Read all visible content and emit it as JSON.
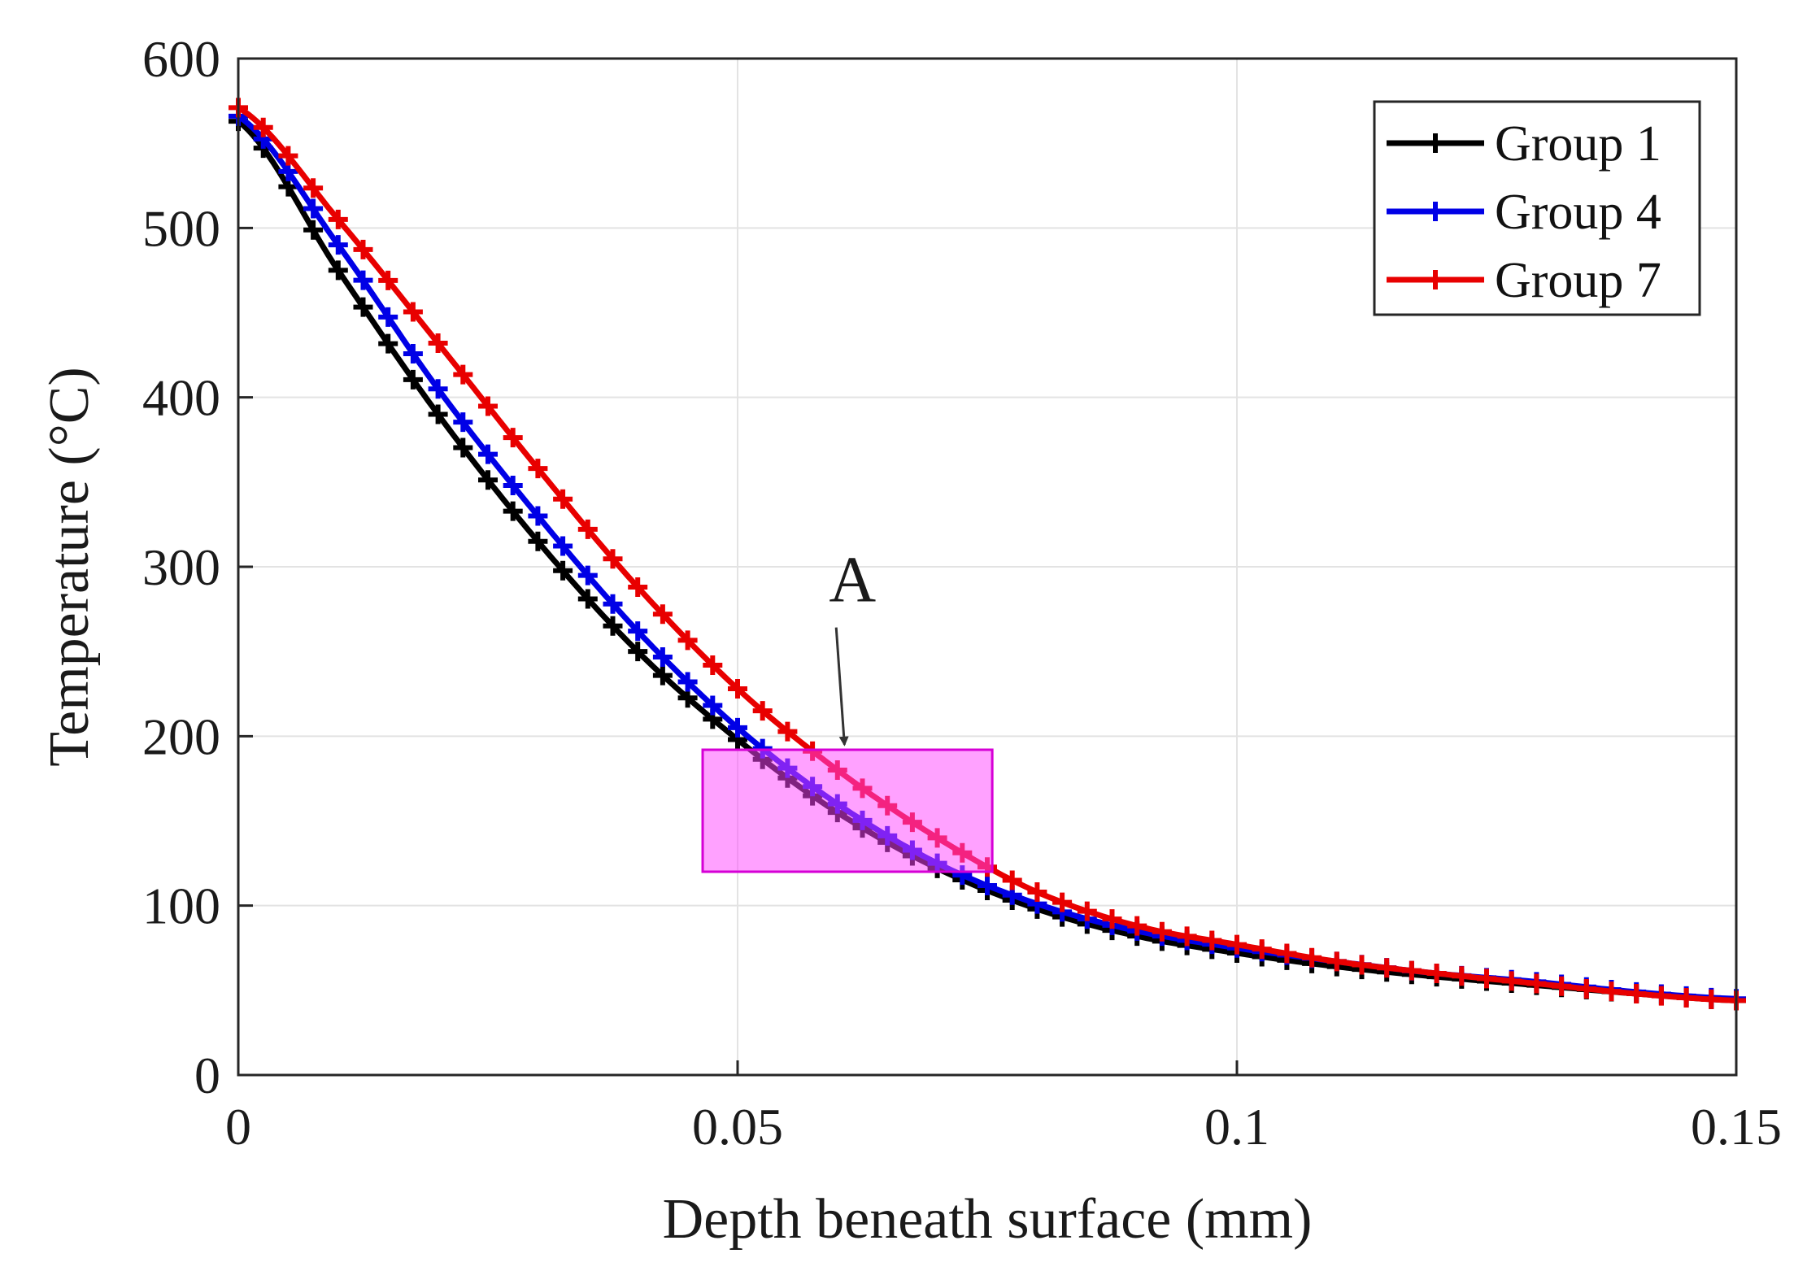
{
  "chart_data": {
    "type": "line",
    "title": "",
    "xlabel": "Depth beneath surface (mm)",
    "ylabel": "Temperature (°C)",
    "xlim": [
      0,
      0.15
    ],
    "ylim": [
      0,
      600
    ],
    "grid": true,
    "legend_position": "top-right",
    "x_ticks": [
      0,
      0.05,
      0.1,
      0.15
    ],
    "x_tick_labels": [
      "0",
      "0.05",
      "0.1",
      "0.15"
    ],
    "y_ticks": [
      0,
      100,
      200,
      300,
      400,
      500,
      600
    ],
    "y_tick_labels": [
      "0",
      "100",
      "200",
      "300",
      "400",
      "500",
      "600"
    ],
    "x": [
      0,
      0.01,
      0.02,
      0.03,
      0.04,
      0.05,
      0.06,
      0.07,
      0.08,
      0.09,
      0.1,
      0.11,
      0.12,
      0.13,
      0.14,
      0.15
    ],
    "series": [
      {
        "name": "Group 1",
        "color": "#000000",
        "values": [
          563,
          475,
          390,
          315,
          250,
          198,
          155,
          122,
          98,
          82,
          72,
          64,
          58,
          53,
          48,
          44
        ]
      },
      {
        "name": "Group 4",
        "color": "#0000e6",
        "values": [
          566,
          490,
          405,
          330,
          262,
          205,
          160,
          125,
          101,
          85,
          75,
          67,
          60,
          55,
          49,
          45
        ]
      },
      {
        "name": "Group 7",
        "color": "#e80000",
        "values": [
          571,
          505,
          432,
          358,
          288,
          228,
          180,
          140,
          108,
          88,
          77,
          67,
          60,
          54,
          48,
          44
        ]
      }
    ],
    "highlight_region": {
      "x": [
        0.0465,
        0.0755
      ],
      "y": [
        120,
        192
      ],
      "color": "#ff44ff"
    },
    "annotation": {
      "text": "A",
      "x": 0.0615,
      "y": 293,
      "arrow_to_x": 0.0607,
      "arrow_to_y": 195
    }
  }
}
